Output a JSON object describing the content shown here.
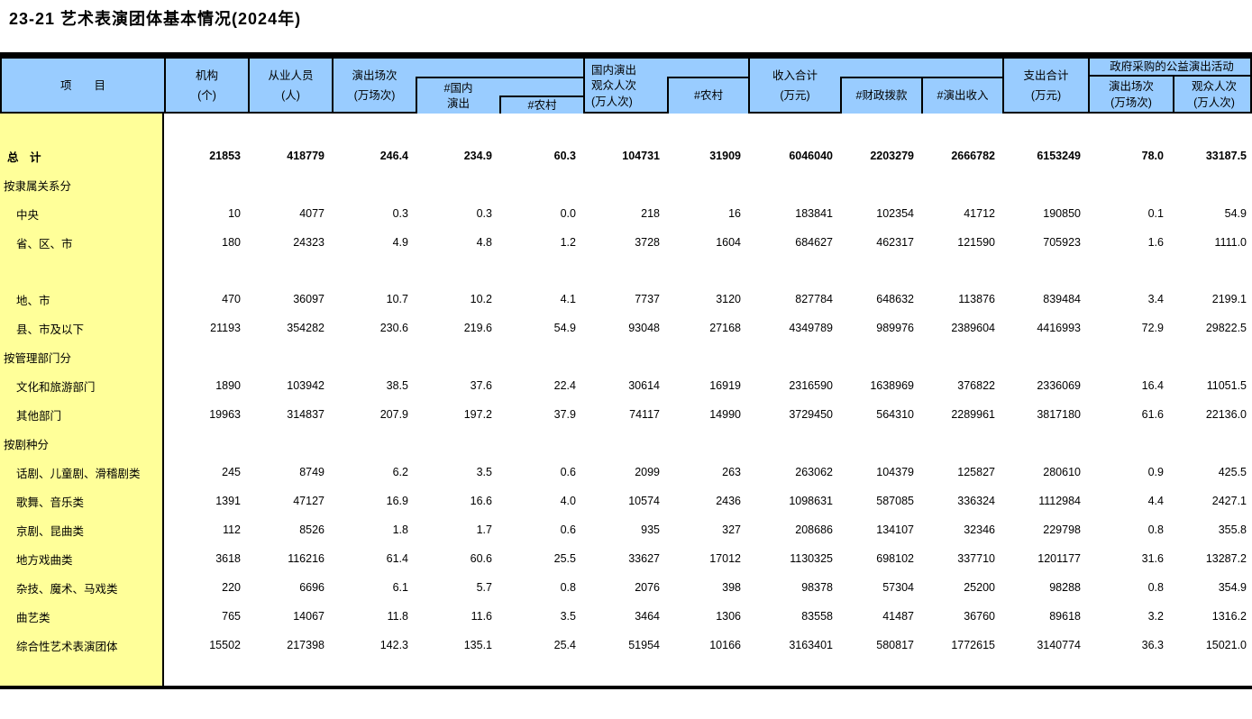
{
  "title": "23-21  艺术表演团体基本情况(2024年)",
  "colors": {
    "header_bg": "#99CCFF",
    "stub_bg": "#FFFF99",
    "rule": "#000000"
  },
  "table": {
    "header": {
      "stub": "项　　目",
      "institutions": [
        "机构",
        "(个)"
      ],
      "employees": [
        "从业人员",
        "(人)"
      ],
      "performances": [
        "演出场次",
        "(万场次)"
      ],
      "domestic_performances": [
        "#国内",
        "演出"
      ],
      "rural_performances": "#农村",
      "domestic_audience": [
        "国内演出",
        "观众人次",
        "(万人次)"
      ],
      "rural_audience": "#农村",
      "total_income": [
        "收入合计",
        "(万元)"
      ],
      "fiscal_appropriation": "#财政拨款",
      "performance_income": "#演出收入",
      "total_expenditure": [
        "支出合计",
        "(万元)"
      ],
      "gov_purchase_group": "政府采购的公益演出活动",
      "gov_performances": [
        "演出场次",
        "(万场次)"
      ],
      "gov_audience": [
        "观众人次",
        "(万人次)"
      ]
    },
    "rows": [
      {
        "type": "spacer"
      },
      {
        "type": "total",
        "label": "总　计",
        "values": [
          "21853",
          "418779",
          "246.4",
          "234.9",
          "60.3",
          "104731",
          "31909",
          "6046040",
          "2203279",
          "2666782",
          "6153249",
          "78.0",
          "33187.5"
        ]
      },
      {
        "type": "section",
        "label": "按隶属关系分"
      },
      {
        "type": "item",
        "label": "中央",
        "values": [
          "10",
          "4077",
          "0.3",
          "0.3",
          "0.0",
          "218",
          "16",
          "183841",
          "102354",
          "41712",
          "190850",
          "0.1",
          "54.9"
        ]
      },
      {
        "type": "item",
        "label": "省、区、市",
        "values": [
          "180",
          "24323",
          "4.9",
          "4.8",
          "1.2",
          "3728",
          "1604",
          "684627",
          "462317",
          "121590",
          "705923",
          "1.6",
          "1111.0"
        ]
      },
      {
        "type": "spacer"
      },
      {
        "type": "item",
        "label": "地、市",
        "values": [
          "470",
          "36097",
          "10.7",
          "10.2",
          "4.1",
          "7737",
          "3120",
          "827784",
          "648632",
          "113876",
          "839484",
          "3.4",
          "2199.1"
        ]
      },
      {
        "type": "item",
        "label": "县、市及以下",
        "values": [
          "21193",
          "354282",
          "230.6",
          "219.6",
          "54.9",
          "93048",
          "27168",
          "4349789",
          "989976",
          "2389604",
          "4416993",
          "72.9",
          "29822.5"
        ]
      },
      {
        "type": "section",
        "label": "按管理部门分"
      },
      {
        "type": "item",
        "label": "文化和旅游部门",
        "values": [
          "1890",
          "103942",
          "38.5",
          "37.6",
          "22.4",
          "30614",
          "16919",
          "2316590",
          "1638969",
          "376822",
          "2336069",
          "16.4",
          "11051.5"
        ]
      },
      {
        "type": "item",
        "label": "其他部门",
        "values": [
          "19963",
          "314837",
          "207.9",
          "197.2",
          "37.9",
          "74117",
          "14990",
          "3729450",
          "564310",
          "2289961",
          "3817180",
          "61.6",
          "22136.0"
        ]
      },
      {
        "type": "section",
        "label": "按剧种分"
      },
      {
        "type": "item",
        "label": "话剧、儿童剧、滑稽剧类",
        "values": [
          "245",
          "8749",
          "6.2",
          "3.5",
          "0.6",
          "2099",
          "263",
          "263062",
          "104379",
          "125827",
          "280610",
          "0.9",
          "425.5"
        ]
      },
      {
        "type": "item",
        "label": "歌舞、音乐类",
        "values": [
          "1391",
          "47127",
          "16.9",
          "16.6",
          "4.0",
          "10574",
          "2436",
          "1098631",
          "587085",
          "336324",
          "1112984",
          "4.4",
          "2427.1"
        ]
      },
      {
        "type": "item",
        "label": "京剧、昆曲类",
        "values": [
          "112",
          "8526",
          "1.8",
          "1.7",
          "0.6",
          "935",
          "327",
          "208686",
          "134107",
          "32346",
          "229798",
          "0.8",
          "355.8"
        ]
      },
      {
        "type": "item",
        "label": "地方戏曲类",
        "values": [
          "3618",
          "116216",
          "61.4",
          "60.6",
          "25.5",
          "33627",
          "17012",
          "1130325",
          "698102",
          "337710",
          "1201177",
          "31.6",
          "13287.2"
        ]
      },
      {
        "type": "item",
        "label": "杂技、魔术、马戏类",
        "values": [
          "220",
          "6696",
          "6.1",
          "5.7",
          "0.8",
          "2076",
          "398",
          "98378",
          "57304",
          "25200",
          "98288",
          "0.8",
          "354.9"
        ]
      },
      {
        "type": "item",
        "label": "曲艺类",
        "values": [
          "765",
          "14067",
          "11.8",
          "11.6",
          "3.5",
          "3464",
          "1306",
          "83558",
          "41487",
          "36760",
          "89618",
          "3.2",
          "1316.2"
        ]
      },
      {
        "type": "item",
        "label": "综合性艺术表演团体",
        "values": [
          "15502",
          "217398",
          "142.3",
          "135.1",
          "25.4",
          "51954",
          "10166",
          "3163401",
          "580817",
          "1772615",
          "3140774",
          "36.3",
          "15021.0"
        ]
      },
      {
        "type": "filler"
      }
    ]
  }
}
